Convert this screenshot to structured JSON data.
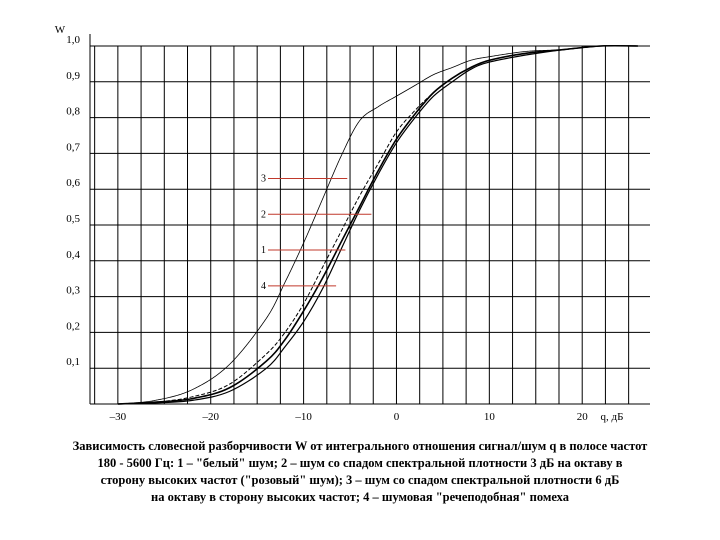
{
  "chart_data": {
    "type": "line",
    "ylabel": "W",
    "xlabel": "q, дБ",
    "xlim": [
      -33,
      27.3
    ],
    "ylim": [
      0,
      1.0
    ],
    "y_ticks": [
      {
        "value": 1.0,
        "label": "1,0"
      },
      {
        "value": 0.9,
        "label": "0,9"
      },
      {
        "value": 0.8,
        "label": "0,8"
      },
      {
        "value": 0.7,
        "label": "0,7"
      },
      {
        "value": 0.6,
        "label": "0,6"
      },
      {
        "value": 0.5,
        "label": "0,5"
      },
      {
        "value": 0.4,
        "label": "0,4"
      },
      {
        "value": 0.3,
        "label": "0,3"
      },
      {
        "value": 0.2,
        "label": "0,2"
      },
      {
        "value": 0.1,
        "label": "0,1"
      }
    ],
    "x_ticks": [
      {
        "value": -30,
        "label": "–30"
      },
      {
        "value": -20,
        "label": "–20"
      },
      {
        "value": -10,
        "label": "–10"
      },
      {
        "value": 0,
        "label": "0"
      },
      {
        "value": 10,
        "label": "10"
      },
      {
        "value": 20,
        "label": "20"
      }
    ],
    "grid": true,
    "series": [
      {
        "name": "1",
        "x": [
          -30,
          -26,
          -22,
          -18,
          -14,
          -12,
          -10,
          -8,
          -6,
          -4,
          -2,
          0,
          2,
          4,
          6,
          8,
          10,
          14,
          18,
          22,
          26
        ],
        "y": [
          0.0,
          0.005,
          0.015,
          0.045,
          0.12,
          0.18,
          0.26,
          0.35,
          0.45,
          0.55,
          0.65,
          0.74,
          0.81,
          0.87,
          0.91,
          0.94,
          0.96,
          0.98,
          0.99,
          1.0,
          1.0
        ]
      },
      {
        "name": "2",
        "x": [
          -30,
          -26,
          -22,
          -18,
          -14,
          -12,
          -10,
          -8,
          -6,
          -4,
          -2,
          0,
          2,
          4,
          6,
          8,
          10,
          14,
          18,
          22,
          26
        ],
        "y": [
          0.0,
          0.005,
          0.02,
          0.055,
          0.14,
          0.2,
          0.28,
          0.38,
          0.48,
          0.58,
          0.67,
          0.76,
          0.82,
          0.87,
          0.91,
          0.94,
          0.96,
          0.98,
          0.99,
          1.0,
          1.0
        ]
      },
      {
        "name": "3",
        "x": [
          -30,
          -26,
          -22,
          -18,
          -14,
          -12,
          -10,
          -8,
          -6,
          -4,
          -2,
          0,
          2,
          4,
          6,
          8,
          10,
          14,
          18,
          22,
          26
        ],
        "y": [
          0.0,
          0.01,
          0.04,
          0.11,
          0.24,
          0.34,
          0.45,
          0.57,
          0.69,
          0.79,
          0.83,
          0.86,
          0.89,
          0.92,
          0.94,
          0.96,
          0.97,
          0.985,
          0.99,
          1.0,
          1.0
        ]
      },
      {
        "name": "4",
        "x": [
          -30,
          -26,
          -22,
          -18,
          -14,
          -12,
          -10,
          -8,
          -6,
          -4,
          -2,
          0,
          2,
          4,
          6,
          8,
          10,
          14,
          18,
          22,
          26
        ],
        "y": [
          0.0,
          0.003,
          0.01,
          0.035,
          0.1,
          0.16,
          0.23,
          0.32,
          0.43,
          0.54,
          0.64,
          0.73,
          0.8,
          0.86,
          0.9,
          0.935,
          0.955,
          0.975,
          0.99,
          1.0,
          1.0
        ]
      }
    ],
    "annotations": [
      {
        "label": "3",
        "x": -5.3,
        "y": 0.63
      },
      {
        "label": "2",
        "x": -2.7,
        "y": 0.53
      },
      {
        "label": "1",
        "x": -5.5,
        "y": 0.43
      },
      {
        "label": "4",
        "x": -6.5,
        "y": 0.33
      }
    ]
  },
  "caption": [
    "Зависимость словесной разборчивости W от интегрального отношения  сигнал/шум q в полосе частот",
    "180 - 5600 Гц: 1 – \"белый\" шум; 2 –  шум со спадом спектральной плотности 3 дБ на октаву в",
    "сторону высоких частот (\"розовый\" шум); 3 – шум со спадом спектральной плотности 6 дБ",
    "на октаву в сторону высоких частот; 4 – шумовая \"речеподобная\" помеха"
  ]
}
